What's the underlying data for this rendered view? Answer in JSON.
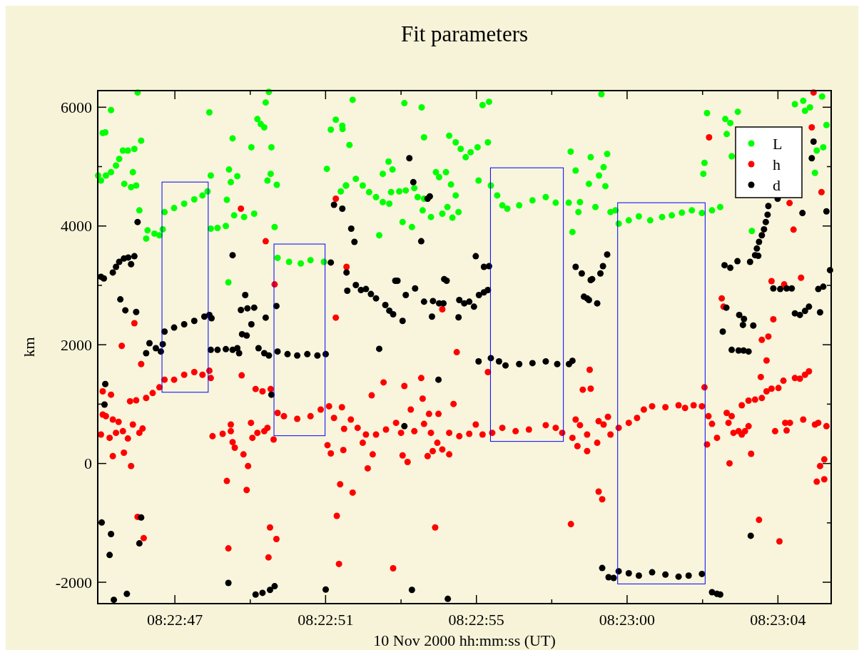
{
  "chart_data": {
    "type": "scatter",
    "title": "Fit parameters",
    "xlabel": "10 Nov 2000 hh:mm:ss (UT)",
    "ylabel": "km",
    "xlim": [
      8.379084,
      8.384827
    ],
    "ylim": [
      -2360,
      6280
    ],
    "xticks": [
      {
        "value": 8.379688,
        "label": "08:22:47"
      },
      {
        "value": 8.380278,
        "label": null
      },
      {
        "value": 8.380868,
        "label": "08:22:51"
      },
      {
        "value": 8.381459,
        "label": null
      },
      {
        "value": 8.382049,
        "label": "08:22:55"
      },
      {
        "value": 8.382639,
        "label": null
      },
      {
        "value": 8.383229,
        "label": "08:23:00"
      },
      {
        "value": 8.38382,
        "label": null
      },
      {
        "value": 8.38441,
        "label": "08:23:04"
      }
    ],
    "yticks": [
      -2000,
      {
        "value": -1000,
        "label": null
      },
      0,
      {
        "value": 1000,
        "label": null
      },
      2000,
      {
        "value": 3000,
        "label": null
      },
      4000,
      {
        "value": 5000,
        "label": null
      },
      6000
    ],
    "marker": "circle",
    "legend": "top right",
    "series": [
      {
        "name": "L",
        "color": "#00ff00",
        "x": [
          8.379396,
          8.379188,
          8.379123,
          8.379143,
          8.379424,
          8.379087,
          8.379109,
          8.379148,
          8.379188,
          8.379227,
          8.379252,
          8.379281,
          8.37932,
          8.379371,
          8.379359,
          8.379292,
          8.379345,
          8.379385,
          8.37941,
          8.379463,
          8.379474,
          8.379528,
          8.379567,
          8.379593,
          8.379607,
          8.379682,
          8.379761,
          8.37984,
          8.379904,
          8.379944,
          8.379969,
          8.380022,
          8.380087,
          8.379969,
          8.379958,
          8.38014,
          8.380112,
          8.380177,
          8.380126,
          8.380095,
          8.380152,
          8.38023,
          8.380309,
          8.380287,
          8.380334,
          8.38036,
          8.380388,
          8.380399,
          8.380424,
          8.380444,
          8.380438,
          8.380413,
          8.380486,
          8.380469,
          8.380107,
          8.380492,
          8.380582,
          8.380674,
          8.38075,
          8.380855,
          8.380909,
          8.380948,
          8.380999,
          8.380878,
          8.380987,
          8.381027,
          8.38108,
          8.381001,
          8.381055,
          8.381485,
          8.38162,
          8.381639,
          8.381836,
          8.381887,
          8.381926,
          8.381965,
          8.382004,
          8.382058,
          8.382139,
          8.382097,
          8.382148,
          8.381029,
          8.381105,
          8.381159,
          8.381209,
          8.381263,
          8.381316,
          8.381367,
          8.381316,
          8.381361,
          8.381392,
          8.381381,
          8.381445,
          8.381496,
          8.381563,
          8.381589,
          8.381639,
          8.381628,
          8.381693,
          8.381732,
          8.381757,
          8.381811,
          8.38185,
          8.381887,
          8.381822,
          8.381782,
          8.381909,
          8.381861,
          8.381471,
          8.381544,
          8.381288,
          8.382066,
          8.382162,
          8.382212,
          8.382252,
          8.382291,
          8.382384,
          8.382488,
          8.382592,
          8.38267,
          8.382772,
          8.382787,
          8.382826,
          8.38286,
          8.382848,
          8.382801,
          8.382944,
          8.383028,
          8.383045,
          8.383009,
          8.38293,
          8.383059,
          8.383073,
          8.382981,
          8.383099,
          8.383138,
          8.383163,
          8.383242,
          8.383321,
          8.38341,
          8.383503,
          8.383579,
          8.383658,
          8.383736,
          8.383815,
          8.383894,
          8.383958,
          8.383826,
          8.383835,
          8.383855,
          8.383998,
          8.384037,
          8.384009,
          8.384096,
          8.384048,
          8.384206,
          8.384543,
          8.384608,
          8.384622,
          8.384661,
          8.384756,
          8.38479,
          8.384714,
          8.384765,
          8.3847
        ],
        "values": [
          6248,
          5952,
          5566,
          5577,
          5437,
          4850,
          4766,
          4850,
          4906,
          5018,
          5130,
          5270,
          5270,
          5298,
          4906,
          4710,
          4654,
          4682,
          4263,
          3788,
          3927,
          3872,
          3844,
          3944,
          4235,
          4302,
          4375,
          4448,
          4515,
          4582,
          3955,
          3967,
          4000,
          4850,
          5913,
          5476,
          4951,
          4839,
          4738,
          4442,
          4179,
          4151,
          4207,
          5326,
          5801,
          5717,
          5661,
          6080,
          6259,
          5326,
          4878,
          4766,
          4694,
          3983,
          3050,
          3463,
          3396,
          3368,
          3424,
          3396,
          5622,
          5790,
          5689,
          4962,
          4582,
          4682,
          6125,
          5633,
          5365,
          6069,
          5997,
          5493,
          5521,
          5409,
          5298,
          5158,
          5242,
          5326,
          5409,
          6036,
          6092,
          4682,
          4794,
          4682,
          4571,
          4487,
          4403,
          4375,
          4878,
          5085,
          4951,
          4571,
          4582,
          4599,
          4638,
          4487,
          4459,
          4263,
          4151,
          4906,
          4822,
          4906,
          4699,
          4515,
          4319,
          4207,
          4235,
          4140,
          4067,
          3983,
          3844,
          4766,
          4682,
          4515,
          4347,
          4291,
          4347,
          4431,
          4487,
          4392,
          4392,
          5253,
          4934,
          4403,
          4235,
          3899,
          5158,
          6220,
          4990,
          4850,
          4710,
          4671,
          5214,
          4319,
          4235,
          4263,
          4039,
          4095,
          4162,
          4095,
          4151,
          4179,
          4224,
          4263,
          4218,
          4263,
          4319,
          4878,
          5063,
          5901,
          5801,
          5734,
          5549,
          5924,
          5175,
          3916,
          6052,
          6108,
          5941,
          5997,
          6181,
          5700,
          5270,
          5326,
          4895
        ]
      },
      {
        "name": "h",
        "color": "#ff0000",
        "x": [
          8.380205,
          8.380948,
          8.380399,
          8.379371,
          8.379272,
          8.379424,
          8.380469,
          8.380948,
          8.380211,
          8.379607,
          8.379682,
          8.379761,
          8.37984,
          8.379904,
          8.379969,
          8.379958,
          8.379463,
          8.379514,
          8.379567,
          8.379337,
          8.379385,
          8.38032,
          8.380374,
          8.380438,
          8.379123,
          8.379188,
          8.379123,
          8.379148,
          8.379202,
          8.379247,
          8.379359,
          8.379435,
          8.379109,
          8.379177,
          8.379227,
          8.379281,
          8.37932,
          8.37941,
          8.379202,
          8.379289,
          8.379345,
          8.379396,
          8.379444,
          8.379983,
          8.380062,
          8.380126,
          8.380126,
          8.38014,
          8.380157,
          8.380225,
          8.380261,
          8.380095,
          8.38025,
          8.380284,
          8.380295,
          8.380334,
          8.380388,
          8.380413,
          8.380461,
          8.380107,
          8.380433,
          8.380483,
          8.380421,
          8.380492,
          8.380542,
          8.380646,
          8.38075,
          8.38083,
          8.380895,
          8.380996,
          8.380934,
          8.381013,
          8.380883,
          8.380909,
          8.381007,
          8.380982,
          8.380956,
          8.380973,
          8.381032,
          8.381782,
          8.381895,
          8.382139,
          8.381322,
          8.381485,
          8.381617,
          8.381229,
          8.381628,
          8.381535,
          8.38187,
          8.381678,
          8.381752,
          8.381066,
          8.381119,
          8.381184,
          8.381159,
          8.381263,
          8.381341,
          8.38142,
          8.381459,
          8.381563,
          8.381639,
          8.381693,
          8.381743,
          8.381782,
          8.381836,
          8.381836,
          8.381915,
          8.381993,
          8.382044,
          8.382097,
          8.381667,
          8.381707,
          8.381471,
          8.38151,
          8.381237,
          8.381198,
          8.38108,
          8.381726,
          8.381397,
          8.382789,
          8.382173,
          8.382252,
          8.382356,
          8.38246,
          8.382592,
          8.38267,
          8.382721,
          8.382826,
          8.38286,
          8.382801,
          8.38284,
          8.382916,
          8.382936,
          8.382882,
          8.382944,
          8.383006,
          8.383045,
          8.383079,
          8.382916,
          8.382995,
          8.383006,
          8.383034,
          8.383099,
          8.383163,
          8.383242,
          8.383307,
          8.38336,
          8.383425,
          8.383529,
          8.383632,
          8.383683,
          8.38375,
          8.383815,
          8.383835,
          8.383855,
          8.383866,
          8.383894,
          8.383933,
          8.38397,
          8.383984,
          8.384009,
          8.384048,
          8.384023,
          8.384062,
          8.384102,
          8.384127,
          8.384152,
          8.38418,
          8.384127,
          8.38418,
          8.384231,
          8.384284,
          8.384321,
          8.38436,
          8.384414,
          8.384453,
          8.384543,
          8.384582,
          8.384622,
          8.384653,
          8.384276,
          8.384321,
          8.384335,
          8.384284,
          8.384374,
          8.38436,
          8.384459,
          8.384591,
          8.384532,
          8.384501,
          8.384751,
          8.384675,
          8.384689,
          8.383871,
          8.3842,
          8.384031,
          8.384262,
          8.384422,
          8.384388,
          8.384467,
          8.384478,
          8.384504,
          8.384608,
          8.3847,
          8.384726,
          8.38479,
          8.384773,
          8.38474,
          8.384714,
          8.384773
        ],
        "values": [
          4291,
          4459,
          3743,
          2362,
          1981,
          1674,
          3016,
          2457,
          1484,
          1411,
          1411,
          1495,
          1540,
          1495,
          1439,
          1562,
          1104,
          1187,
          1283,
          1048,
          1064,
          1255,
          1215,
          1255,
          1215,
          1159,
          824,
          796,
          740,
          701,
          656,
          589,
          488,
          432,
          516,
          544,
          421,
          516,
          125,
          181,
          -43,
          -899,
          -1256,
          460,
          500,
          544,
          656,
          360,
          265,
          153,
          -43,
          -294,
          -446,
          684,
          432,
          516,
          544,
          600,
          404,
          -1430,
          -1077,
          -1273,
          -1581,
          852,
          796,
          752,
          796,
          908,
          964,
          947,
          768,
          584,
          309,
          170,
          226,
          -350,
          -882,
          -1692,
          3312,
          2597,
          1875,
          1540,
          1366,
          1305,
          1439,
          1148,
          1092,
          908,
          1003,
          835,
          835,
          740,
          600,
          488,
          349,
          488,
          572,
          684,
          516,
          544,
          667,
          516,
          349,
          237,
          153,
          516,
          460,
          500,
          656,
          488,
          125,
          209,
          136,
          25,
          153,
          -82,
          -490,
          -1077,
          -1765,
          -1021,
          516,
          600,
          544,
          572,
          645,
          600,
          516,
          740,
          645,
          432,
          293,
          209,
          1579,
          1243,
          1260,
          712,
          656,
          785,
          488,
          349,
          -473,
          -602,
          488,
          600,
          684,
          768,
          908,
          964,
          947,
          981,
          936,
          981,
          964,
          1283,
          321,
          796,
          667,
          432,
          2781,
          2641,
          852,
          796,
          684,
          516,
          544,
          488,
          544,
          628,
          981,
          1059,
          1076,
          1103,
          1215,
          1260,
          1271,
          1394,
          1439,
          1428,
          1495,
          1551,
          1456,
          1735,
          2138,
          2082,
          2429,
          3072,
          3016,
          3128,
          3939,
          4386,
          4571,
          5661,
          6248,
          5493,
          164,
          2,
          -949,
          -1312,
          544,
          684,
          556,
          684,
          740,
          656,
          684,
          628,
          69,
          -43,
          -306,
          -266
        ]
      },
      {
        "name": "d",
        "color": "#000000",
        "x": [
          8.379396,
          8.379109,
          8.379132,
          8.379202,
          8.379227,
          8.379252,
          8.379289,
          8.379323,
          8.379371,
          8.379345,
          8.379261,
          8.3793,
          8.379385,
          8.379463,
          8.379489,
          8.379539,
          8.379578,
          8.379593,
          8.379607,
          8.379682,
          8.379761,
          8.37984,
          8.379919,
          8.379958,
          8.379975,
          8.379969,
          8.380022,
          8.380087,
          8.38014,
          8.380177,
          8.380191,
          8.38014,
          8.380239,
          8.380205,
          8.380256,
          8.380309,
          8.380287,
          8.380214,
          8.38025,
          8.380343,
          8.380388,
          8.380424,
          8.380399,
          8.380483,
          8.380444,
          8.380492,
          8.38057,
          8.380646,
          8.380725,
          8.380804,
          8.380869,
          8.380909,
          8.380934,
          8.380999,
          8.381032,
          8.381038,
          8.379143,
          8.379137,
          8.379115,
          8.379188,
          8.379177,
          8.37941,
          8.379424,
          8.37921,
          8.379312,
          8.380107,
          8.38032,
          8.380374,
          8.380433,
          8.380469,
          8.380869,
          8.381524,
          8.381555,
          8.381667,
          8.381684,
          8.381069,
          8.381094,
          8.381105,
          8.381145,
          8.381184,
          8.381223,
          8.381263,
          8.381336,
          8.381367,
          8.381397,
          8.381471,
          8.381414,
          8.381431,
          8.381496,
          8.381569,
          8.381639,
          8.381709,
          8.381757,
          8.381791,
          8.381701,
          8.381797,
          8.381816,
          8.381909,
          8.381915,
          8.381954,
          8.381993,
          8.38203,
          8.382069,
          8.382108,
          8.382139,
          8.381617,
          8.382044,
          8.382108,
          8.382148,
          8.381288,
          8.381752,
          8.381485,
          8.382066,
          8.382162,
          8.382226,
          8.382277,
          8.382384,
          8.382488,
          8.382592,
          8.382682,
          8.382774,
          8.382801,
          8.382826,
          8.382874,
          8.382944,
          8.382891,
          8.38293,
          8.381544,
          8.381825,
          8.383073,
          8.38304,
          8.38302,
          8.382955,
          8.382916,
          8.382995,
          8.383034,
          8.383084,
          8.383124,
          8.383163,
          8.383242,
          8.383321,
          8.383425,
          8.383529,
          8.383632,
          8.383711,
          8.383815,
          8.383894,
          8.383933,
          8.383958,
          8.383992,
          8.384037,
          8.384093,
          8.384192,
          8.384231,
          8.384256,
          8.384245,
          8.384262,
          8.384284,
          8.384301,
          8.384315,
          8.384329,
          8.384335,
          8.384408,
          8.384006,
          8.383978,
          8.384107,
          8.384136,
          8.384144,
          8.384217,
          8.384048,
          8.384102,
          8.384141,
          8.38418,
          8.384374,
          8.384428,
          8.384478,
          8.384518,
          8.384543,
          8.384582,
          8.384622,
          8.384653,
          8.38474,
          8.384726,
          8.384765,
          8.384818,
          8.384602,
          8.38479,
          8.384689,
          8.384675,
          8.384197
        ],
        "values": [
          4067,
          3145,
          3117,
          3217,
          3312,
          3396,
          3452,
          3469,
          3491,
          3357,
          2764,
          2580,
          2552,
          1858,
          2026,
          1942,
          1886,
          2009,
          2222,
          2289,
          2345,
          2401,
          2474,
          2502,
          2446,
          1914,
          1914,
          1926,
          1914,
          1942,
          1858,
          3508,
          2837,
          2585,
          2613,
          2625,
          2345,
          2177,
          2155,
          1942,
          1858,
          1819,
          2457,
          2652,
          1159,
          1886,
          1842,
          1819,
          1842,
          1819,
          1842,
          3385,
          4358,
          4291,
          3217,
          2910,
          1338,
          992,
          -994,
          -1189,
          -1541,
          -1346,
          -910,
          -2296,
          -2196,
          -2011,
          -2207,
          -2179,
          -2129,
          -2067,
          -2123,
          5141,
          4738,
          4459,
          4498,
          3955,
          3732,
          3005,
          2921,
          2938,
          2854,
          2781,
          2669,
          2574,
          2513,
          2401,
          3078,
          3078,
          2837,
          2949,
          2725,
          2736,
          2697,
          2697,
          2474,
          3106,
          3078,
          2462,
          2753,
          2697,
          2725,
          2641,
          2837,
          2882,
          2921,
          3743,
          3491,
          3312,
          3323,
          1931,
          1411,
          628,
          1719,
          1775,
          1719,
          1652,
          1674,
          1691,
          1719,
          1674,
          1674,
          1730,
          3312,
          3201,
          3089,
          2809,
          2753,
          -2129,
          -2280,
          3519,
          3324,
          3201,
          3106,
          2781,
          2697,
          -1760,
          -1916,
          -1927,
          -1815,
          -1849,
          -1888,
          -1832,
          -1871,
          -1905,
          -1888,
          -1860,
          -2168,
          -2196,
          -2207,
          3340,
          3296,
          3407,
          3396,
          3508,
          3497,
          3620,
          3732,
          3844,
          3944,
          4067,
          4190,
          4336,
          4459,
          2625,
          2222,
          2502,
          2334,
          2434,
          2323,
          1914,
          1903,
          1903,
          1886,
          2949,
          2938,
          2949,
          2949,
          2529,
          2502,
          2569,
          2641,
          2546,
          2938,
          2977,
          3256,
          4218,
          4246,
          5421,
          5141,
          -1217
        ]
      }
    ]
  }
}
